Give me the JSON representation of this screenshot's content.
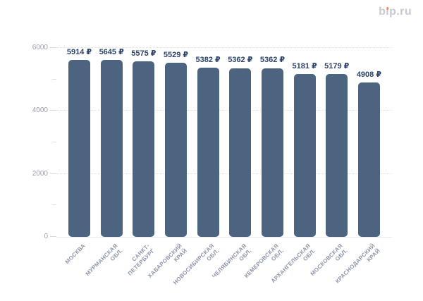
{
  "page": {
    "background": "#ffffff"
  },
  "logo": {
    "text": "bip.ru",
    "color": "#c6cad7",
    "dot_color": "#f18a67"
  },
  "chart_data": {
    "type": "bar",
    "title": "",
    "xlabel": "",
    "ylabel": "",
    "categories": [
      "МОСКВА",
      "МУРМАНСКАЯ ОБЛ.",
      "САНКТ-ПЕТЕРБУРГ",
      "ХАБАРОВСКИЙ КРАЙ",
      "НОВОСИБИРСКАЯ ОБЛ.",
      "ЧЕЛЯБИНСКАЯ ОБЛ.",
      "КЕМЕРОВСКАЯ ОБЛ.",
      "АРХАНГЕЛЬСКАЯ ОБЛ.",
      "МОСКОВСКАЯ ОБЛ.",
      "КРАСНОДАРСКИЙ КРАЙ"
    ],
    "category_label_lines": [
      [
        "МОСКВА"
      ],
      [
        "МУРМАНСКАЯ",
        "ОБЛ."
      ],
      [
        "САНКТ-",
        "ПЕТЕРБУРГ"
      ],
      [
        "ХАБАРОВСКИЙ",
        "КРАЙ"
      ],
      [
        "НОВОСИБИРСКАЯ",
        "ОБЛ."
      ],
      [
        "ЧЕЛЯБИНСКАЯ",
        "ОБЛ."
      ],
      [
        "КЕМЕРОВСКАЯ",
        "ОБЛ."
      ],
      [
        "АРХАНГЕЛЬСКАЯ",
        "ОБЛ."
      ],
      [
        "МОСКОВСКАЯ",
        "ОБЛ."
      ],
      [
        "КРАСНОДАРСКИЙ",
        "КРАЙ"
      ]
    ],
    "values": [
      5914,
      5645,
      5575,
      5529,
      5382,
      5362,
      5362,
      5181,
      5179,
      4908
    ],
    "value_labels": [
      "5914 ₽",
      "5645 ₽",
      "5575 ₽",
      "5529 ₽",
      "5382 ₽",
      "5362 ₽",
      "5362 ₽",
      "5181 ₽",
      "5179 ₽",
      "4908 ₽"
    ],
    "ylim": [
      0,
      6000
    ],
    "yticks": [
      0,
      2000,
      4000,
      6000
    ],
    "minor_yticks": [
      1000,
      3000,
      5000
    ],
    "gridlines_at": [
      2000,
      4000,
      6000
    ],
    "grid": "horizontal-dotted-major",
    "legend": "none",
    "colors": {
      "bar": "#4c6480",
      "value_label": "#2c4568",
      "axis_label": "#99a0b0",
      "category_label": "#8d95a8",
      "gridline": "#dfe2e9",
      "axis_line": "#e7e9ef",
      "tick_major": "#d6dae2",
      "tick_minor": "#dcdfe6"
    }
  }
}
